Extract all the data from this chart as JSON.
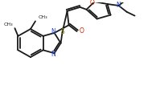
{
  "bg_color": "#ffffff",
  "line_color": "#1a1a1a",
  "lw": 1.3,
  "doff": 0.022,
  "figsize": [
    2.04,
    1.07
  ],
  "dpi": 100,
  "xlim": [
    0,
    204
  ],
  "ylim": [
    0,
    107
  ]
}
